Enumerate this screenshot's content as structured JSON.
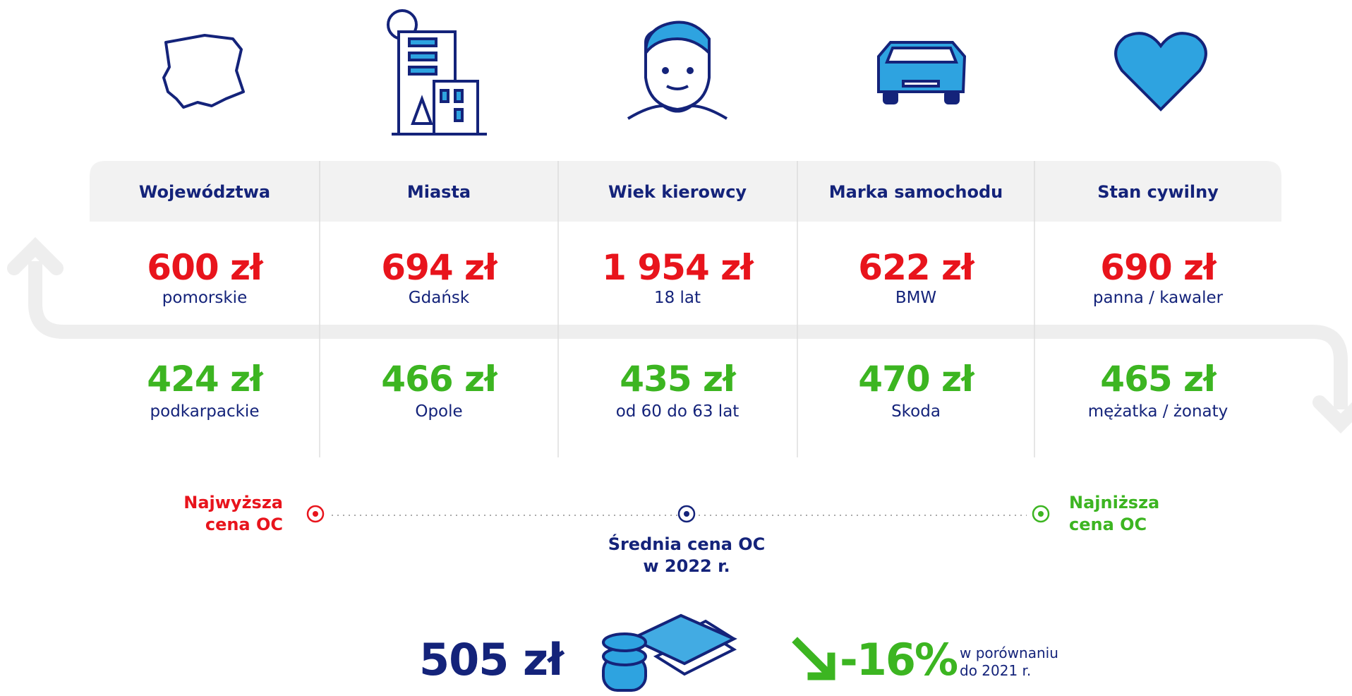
{
  "columns": [
    {
      "header": "Województwa",
      "highest": {
        "value": "600 zł",
        "label": "pomorskie"
      },
      "lowest": {
        "value": "424 zł",
        "label": "podkarpackie"
      }
    },
    {
      "header": "Miasta",
      "highest": {
        "value": "694 zł",
        "label": "Gdańsk"
      },
      "lowest": {
        "value": "466 zł",
        "label": "Opole"
      }
    },
    {
      "header": "Wiek kierowcy",
      "highest": {
        "value": "1 954 zł",
        "label": "18 lat"
      },
      "lowest": {
        "value": "435 zł",
        "label": "od 60 do 63 lat"
      }
    },
    {
      "header": "Marka samochodu",
      "highest": {
        "value": "622 zł",
        "label": "BMW"
      },
      "lowest": {
        "value": "470 zł",
        "label": "Skoda"
      }
    },
    {
      "header": "Stan cywilny",
      "highest": {
        "value": "690 zł",
        "label": "panna / kawaler"
      },
      "lowest": {
        "value": "465 zł",
        "label": "mężatka / żonaty"
      }
    }
  ],
  "legend": {
    "highest": "Najwyższa cena OC",
    "average": "Średnia cena OC w 2022 r.",
    "lowest": "Najniższa cena OC"
  },
  "summary": {
    "average": "505 zł",
    "change": "-16%",
    "comparison": "w porównaniu do 2021 r."
  }
}
